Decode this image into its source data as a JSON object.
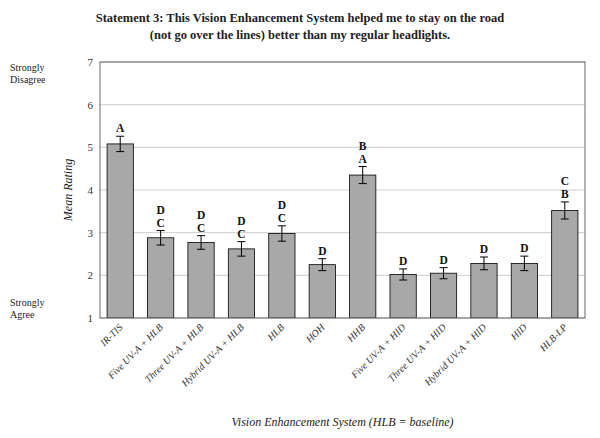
{
  "chart_data": {
    "type": "bar",
    "title": "Statement 3:  This Vision Enhancement System helped me to stay on the road",
    "subtitle": "(not go over the lines) better than my regular headlights.",
    "x_label": "Vision Enhancement System (HLB = baseline)",
    "y_label": "Mean Rating",
    "categories": [
      "IR-TIS",
      "Five UV-A + HLB",
      "Three UV-A + HLB",
      "Hybrid UV-A + HLB",
      "HLB",
      "HOH",
      "HHB",
      "Five UV-A + HID",
      "Three UV-A + HID",
      "Hybrid UV-A + HID",
      "HID",
      "HLB-LP"
    ],
    "values": [
      5.08,
      2.88,
      2.77,
      2.62,
      2.98,
      2.25,
      4.35,
      2.02,
      2.05,
      2.28,
      2.28,
      3.52
    ],
    "errors": [
      0.18,
      0.17,
      0.16,
      0.17,
      0.18,
      0.14,
      0.2,
      0.13,
      0.13,
      0.15,
      0.17,
      0.2
    ],
    "letters": [
      [
        "A"
      ],
      [
        "D",
        "C"
      ],
      [
        "D",
        "C"
      ],
      [
        "D",
        "C"
      ],
      [
        "D",
        "C"
      ],
      [
        "D"
      ],
      [
        "B",
        "A"
      ],
      [
        "D"
      ],
      [
        "D"
      ],
      [
        "D"
      ],
      [
        "D"
      ],
      [
        "C",
        "B"
      ]
    ],
    "annotations": [
      {
        "text": "Strongly Disagree",
        "y": 7
      },
      {
        "text": "Strongly Agree",
        "y": 1
      }
    ],
    "color": "#a8a8a8",
    "ylim": [
      1,
      7
    ],
    "yticks": [
      1,
      2,
      3,
      4,
      5,
      6,
      7
    ],
    "grid": true
  }
}
